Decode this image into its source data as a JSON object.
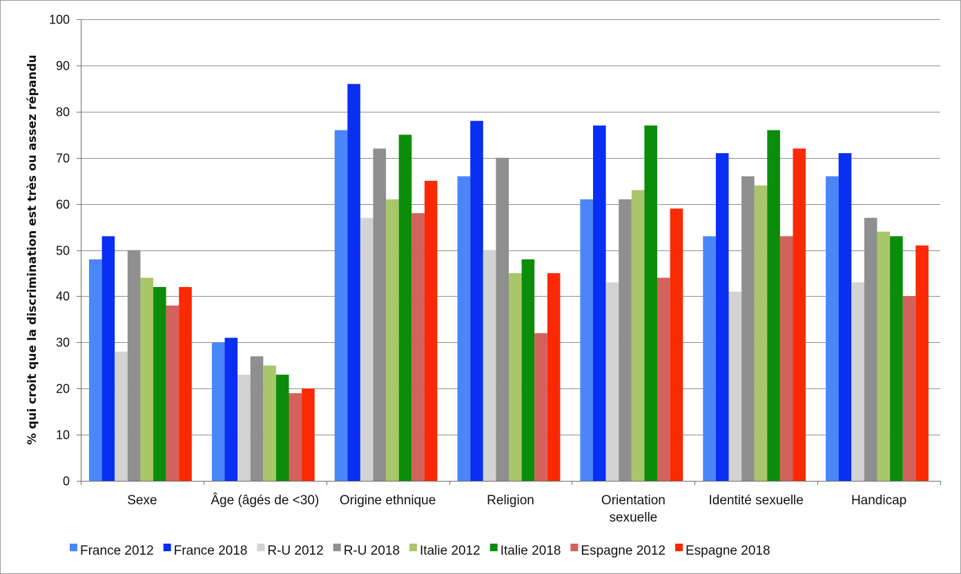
{
  "chart_data": {
    "type": "bar",
    "title": "",
    "xlabel": "",
    "ylabel": "% qui croit que la discrimination est très ou assez répandu",
    "ylim": [
      0,
      100
    ],
    "yticks": [
      0,
      10,
      20,
      30,
      40,
      50,
      60,
      70,
      80,
      90,
      100
    ],
    "grid": true,
    "legend_position": "bottom",
    "categories": [
      [
        "Sexe"
      ],
      [
        "Âge (âgés de <30)"
      ],
      [
        "Origine ethnique"
      ],
      [
        "Religion"
      ],
      [
        "Orientation",
        "sexuelle"
      ],
      [
        "Identité sexuelle"
      ],
      [
        "Handicap"
      ]
    ],
    "series": [
      {
        "name": "France 2012",
        "color": "#4a86f7",
        "values": [
          48,
          30,
          76,
          66,
          61,
          53,
          66
        ]
      },
      {
        "name": "France 2018",
        "color": "#0a2ff2",
        "values": [
          53,
          31,
          86,
          78,
          77,
          71,
          71
        ]
      },
      {
        "name": "R-U 2012",
        "color": "#d3d3d3",
        "values": [
          28,
          23,
          57,
          50,
          43,
          41,
          43
        ]
      },
      {
        "name": "R-U 2018",
        "color": "#8f8f8f",
        "values": [
          50,
          27,
          72,
          70,
          61,
          66,
          57
        ]
      },
      {
        "name": "Italie 2012",
        "color": "#a9c66b",
        "values": [
          44,
          25,
          61,
          45,
          63,
          64,
          54
        ]
      },
      {
        "name": "Italie 2018",
        "color": "#0b8d0b",
        "values": [
          42,
          23,
          75,
          48,
          77,
          76,
          53
        ]
      },
      {
        "name": "Espagne 2012",
        "color": "#d4625c",
        "values": [
          38,
          19,
          58,
          32,
          44,
          53,
          40
        ]
      },
      {
        "name": "Espagne 2018",
        "color": "#fb2a05",
        "values": [
          42,
          20,
          65,
          45,
          59,
          72,
          51
        ]
      }
    ]
  }
}
